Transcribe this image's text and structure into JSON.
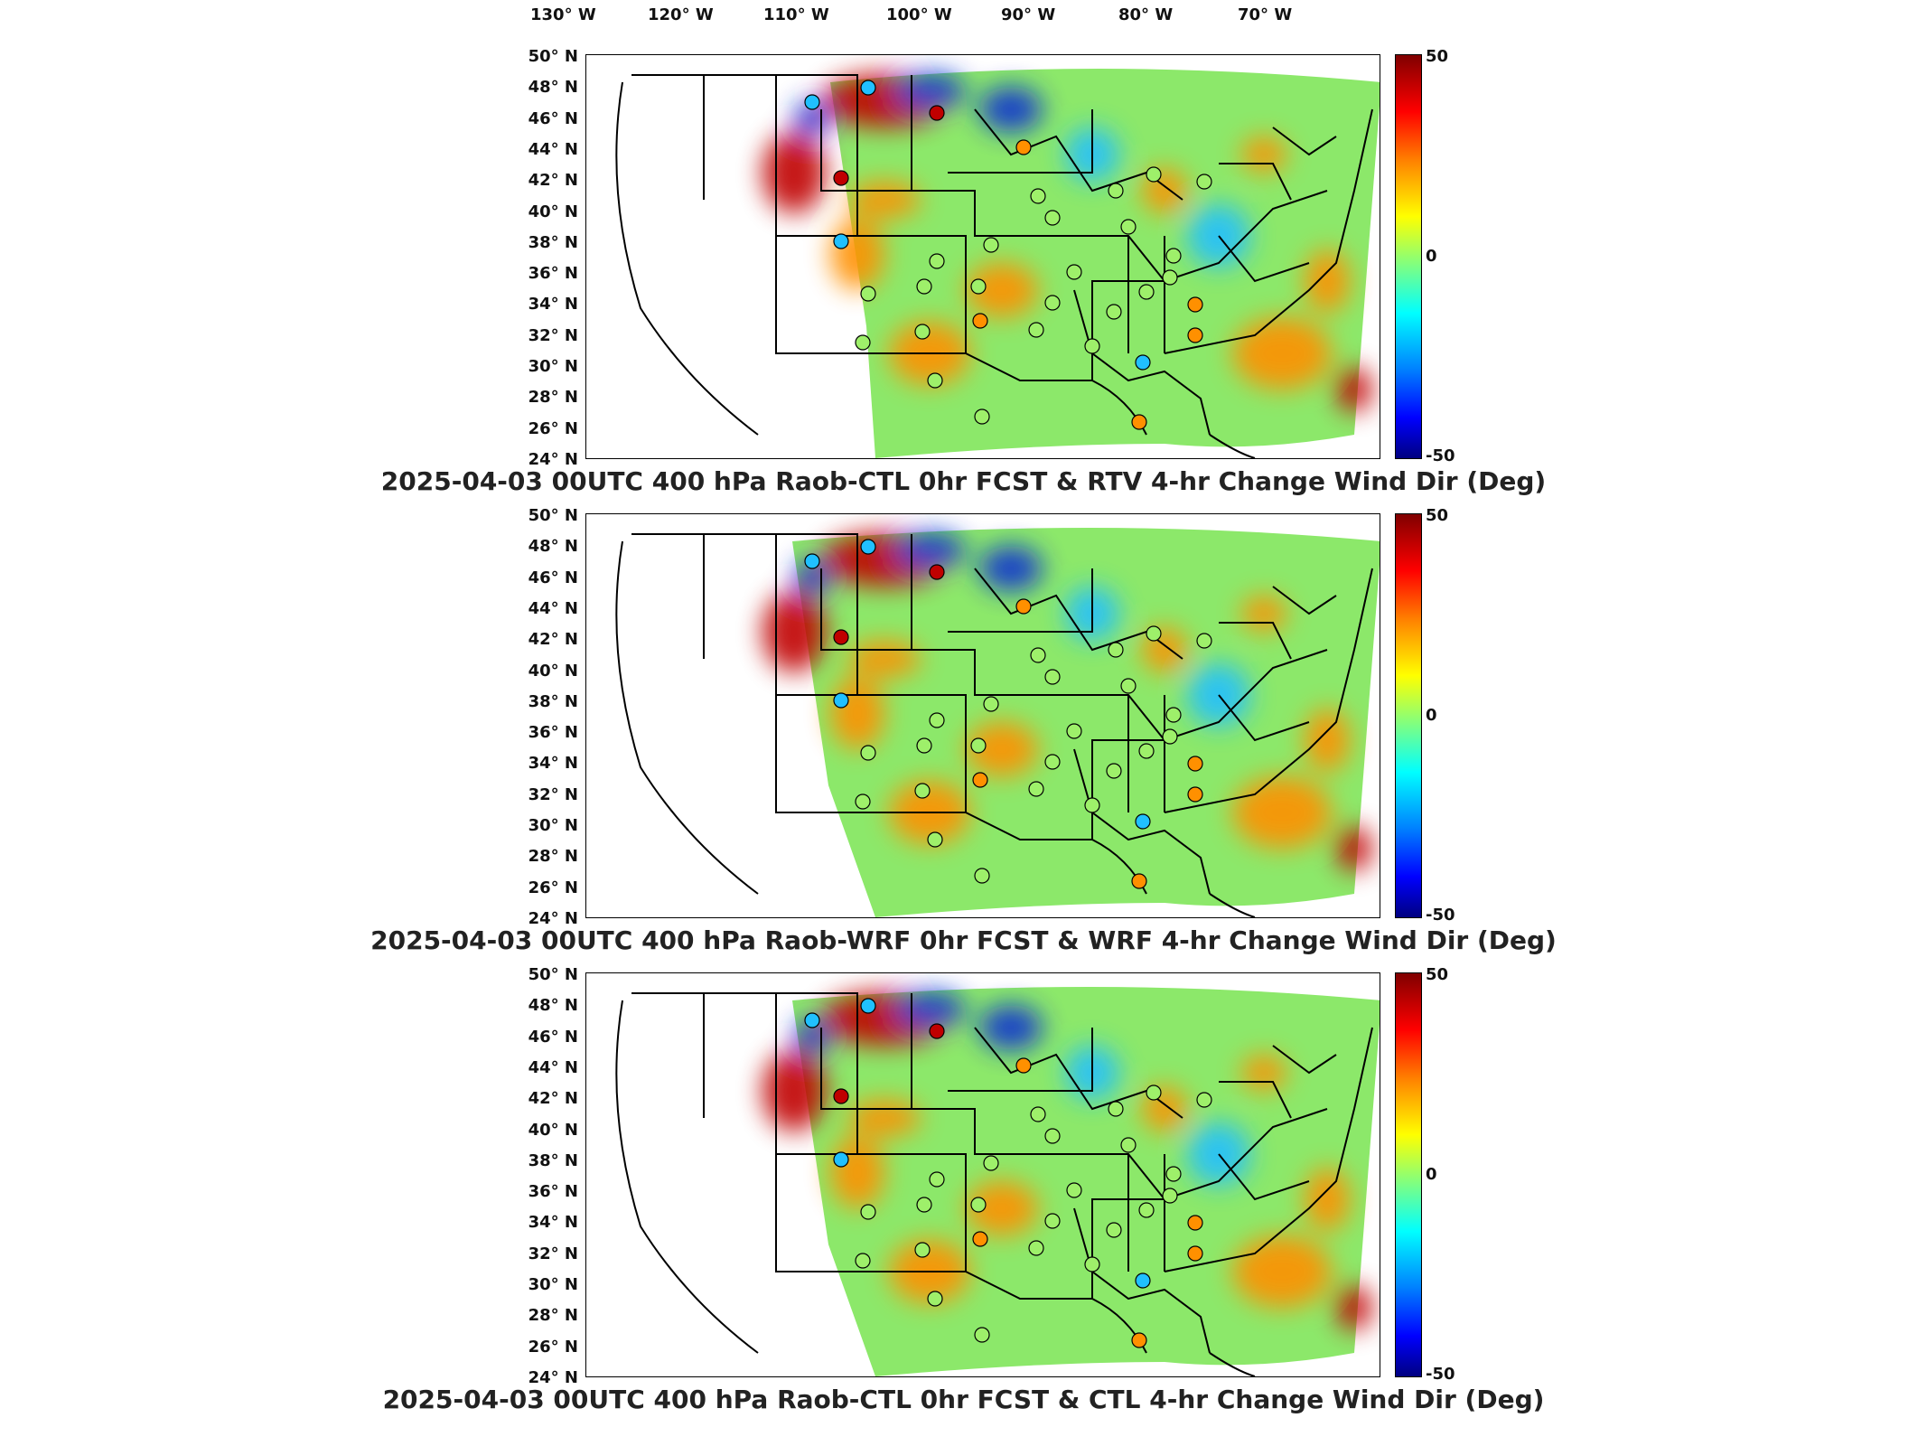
{
  "lon_labels": [
    "130° W",
    "120° W",
    "110° W",
    "100° W",
    "90° W",
    "80° W",
    "70° W"
  ],
  "lat_labels": [
    "50° N",
    "48° N",
    "46° N",
    "44° N",
    "42° N",
    "40° N",
    "38° N",
    "36° N",
    "34° N",
    "32° N",
    "30° N",
    "28° N",
    "26° N",
    "24° N"
  ],
  "colorbar": {
    "max": "50",
    "mid": "0",
    "min": "-50"
  },
  "panels": [
    {
      "title": "2025-04-03 00UTC 400 hPa Raob-CTL 0hr FCST & RTV 4-hr Change Wind Dir (Deg)"
    },
    {
      "title": "2025-04-03 00UTC 400 hPa Raob-WRF 0hr FCST & WRF 4-hr Change Wind Dir (Deg)"
    },
    {
      "title": "2025-04-03 00UTC 400 hPa Raob-CTL 0hr FCST & CTL 4-hr Change Wind Dir (Deg)"
    }
  ],
  "colors": {
    "hot": "#c00000",
    "warm": "#ff9000",
    "neutral": "#9ef06a",
    "cool": "#20c0ff",
    "cold": "#1030d0"
  }
}
